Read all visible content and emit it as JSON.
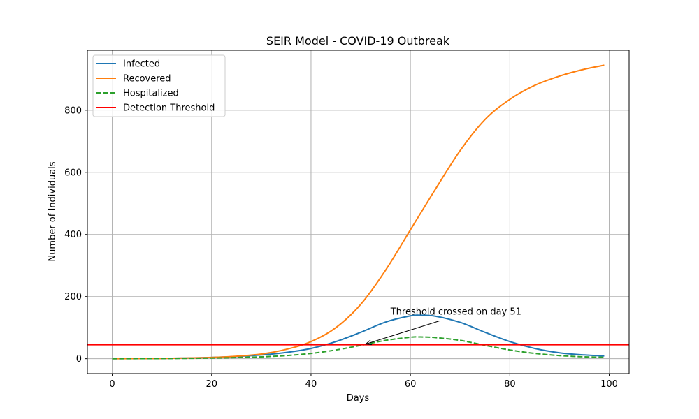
{
  "chart_data": {
    "type": "line",
    "title": "SEIR Model - COVID-19 Outbreak",
    "xlabel": "Days",
    "ylabel": "Number of Individuals",
    "xlim": [
      -5,
      104
    ],
    "ylim": [
      -48,
      993
    ],
    "xticks": [
      0,
      20,
      40,
      60,
      80,
      100
    ],
    "yticks": [
      0,
      200,
      400,
      600,
      800
    ],
    "grid": true,
    "legend_position": "top-left",
    "series": [
      {
        "name": "Infected",
        "color": "#1f77b4",
        "style": "solid",
        "x": [
          0,
          5,
          10,
          15,
          20,
          25,
          30,
          35,
          40,
          45,
          50,
          55,
          60,
          62,
          65,
          70,
          75,
          80,
          85,
          90,
          95,
          99
        ],
        "values": [
          0,
          0.5,
          1,
          2,
          4,
          7,
          12,
          20,
          33,
          55,
          85,
          118,
          138,
          140,
          137,
          117,
          85,
          55,
          33,
          19,
          12,
          9
        ]
      },
      {
        "name": "Recovered",
        "color": "#ff7f0e",
        "style": "solid",
        "x": [
          0,
          5,
          10,
          15,
          20,
          25,
          30,
          35,
          40,
          45,
          50,
          55,
          60,
          65,
          70,
          75,
          80,
          85,
          90,
          95,
          99
        ],
        "values": [
          0,
          0.5,
          1,
          2,
          4,
          8,
          15,
          30,
          55,
          100,
          175,
          285,
          415,
          545,
          670,
          770,
          835,
          880,
          910,
          932,
          945
        ]
      },
      {
        "name": "Hospitalized",
        "color": "#2ca02c",
        "style": "dashed",
        "x": [
          0,
          5,
          10,
          15,
          20,
          25,
          30,
          35,
          40,
          45,
          50,
          55,
          60,
          62,
          65,
          70,
          75,
          80,
          85,
          90,
          95,
          99
        ],
        "values": [
          0,
          0.2,
          0.5,
          1,
          2,
          3.5,
          6,
          10,
          17,
          28,
          43,
          59,
          69,
          70,
          68,
          59,
          43,
          28,
          17,
          10,
          6,
          4.5
        ]
      },
      {
        "name": "Detection Threshold",
        "color": "#ff0000",
        "style": "hline",
        "value": 45
      }
    ],
    "annotation": {
      "text": "Threshold crossed on day 51",
      "point": [
        51,
        47
      ],
      "text_at": [
        56,
        142
      ]
    }
  }
}
